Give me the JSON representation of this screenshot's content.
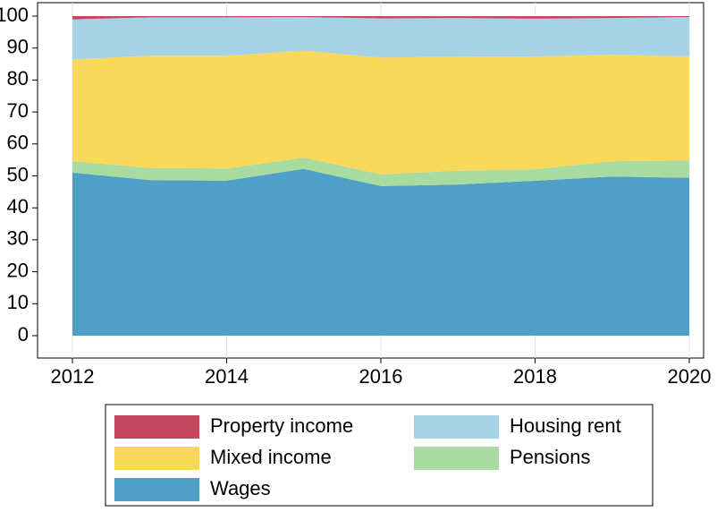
{
  "chart_data": {
    "type": "stacked_area",
    "x": [
      2012,
      2013,
      2014,
      2015,
      2016,
      2017,
      2018,
      2019,
      2020
    ],
    "xlim": [
      2012,
      2020
    ],
    "xticks": [
      2012,
      2014,
      2016,
      2018,
      2020
    ],
    "ylim": [
      0,
      100
    ],
    "yticks": [
      0,
      10,
      20,
      30,
      40,
      50,
      60,
      70,
      80,
      90,
      100
    ],
    "grid": true,
    "series": [
      {
        "name": "Wages",
        "color": "#4fa0c6",
        "values": [
          51.0,
          48.7,
          48.5,
          52.2,
          46.8,
          47.3,
          48.5,
          49.8,
          49.4
        ]
      },
      {
        "name": "Pensions",
        "color": "#a8dba0",
        "values": [
          3.6,
          3.8,
          3.8,
          3.5,
          3.7,
          4.3,
          3.6,
          4.8,
          5.4
        ]
      },
      {
        "name": "Mixed income",
        "color": "#fad85a",
        "values": [
          31.8,
          35.1,
          35.3,
          33.5,
          36.5,
          35.7,
          35.3,
          33.3,
          32.6
        ]
      },
      {
        "name": "Housing rent",
        "color": "#a6d2e5",
        "values": [
          12.6,
          12.0,
          12.0,
          10.5,
          12.3,
          12.1,
          11.8,
          11.5,
          12.3
        ]
      },
      {
        "name": "Property income",
        "color": "#c4485e",
        "values": [
          1.0,
          0.4,
          0.4,
          0.3,
          0.7,
          0.6,
          0.8,
          0.6,
          0.3
        ]
      }
    ]
  }
}
